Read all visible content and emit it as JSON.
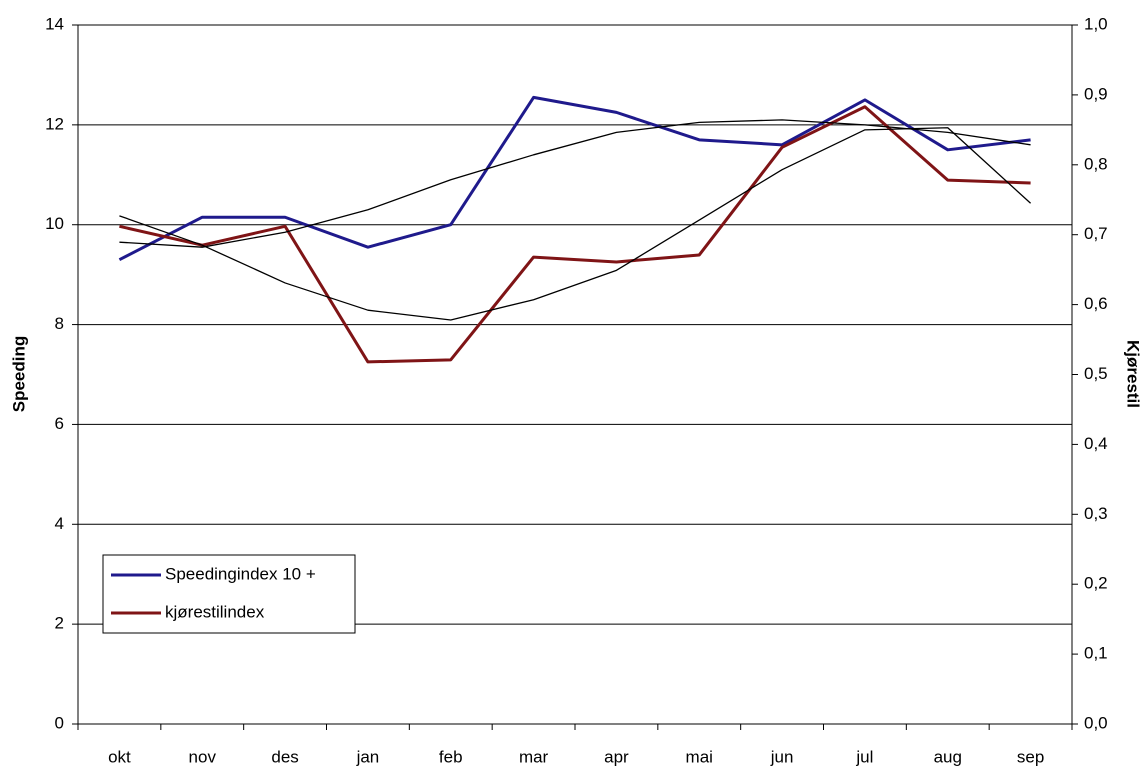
{
  "chart_data": {
    "type": "line",
    "categories": [
      "okt",
      "nov",
      "des",
      "jan",
      "feb",
      "mar",
      "apr",
      "mai",
      "jun",
      "jul",
      "aug",
      "sep"
    ],
    "y_label": "Speeding",
    "y2_label": "Kjørestil",
    "ylim": [
      0,
      14
    ],
    "yticks": [
      0,
      2,
      4,
      6,
      8,
      10,
      12,
      14
    ],
    "y2lim": [
      0,
      1
    ],
    "y2ticks": [
      {
        "value": 0,
        "label": "0,0"
      },
      {
        "value": 0.1,
        "label": "0,1"
      },
      {
        "value": 0.2,
        "label": "0,2"
      },
      {
        "value": 0.3,
        "label": "0,3"
      },
      {
        "value": 0.4,
        "label": "0,4"
      },
      {
        "value": 0.5,
        "label": "0,5"
      },
      {
        "value": 0.6,
        "label": "0,6"
      },
      {
        "value": 0.7,
        "label": "0,7"
      },
      {
        "value": 0.8,
        "label": "0,8"
      },
      {
        "value": 0.9,
        "label": "0,9"
      },
      {
        "value": 1,
        "label": "1,0"
      }
    ],
    "grid": true,
    "legend": "lower left",
    "series": [
      {
        "name": "Speedingindex 10 +",
        "color": "#1f1a8c",
        "values": [
          9.3,
          10.15,
          10.15,
          9.55,
          10.0,
          12.55,
          12.25,
          11.7,
          11.6,
          12.5,
          11.5,
          11.7
        ]
      },
      {
        "name": "kjørestilindex",
        "color": "#7f1416",
        "axis": "y2",
        "values": [
          0.712,
          0.685,
          0.712,
          0.518,
          0.521,
          0.668,
          0.661,
          0.671,
          0.825,
          0.883,
          0.778,
          0.774
        ]
      },
      {
        "color": "#000000",
        "values": [
          9.65,
          9.55,
          9.85,
          10.3,
          10.9,
          11.4,
          11.85,
          12.05,
          12.1,
          12.0,
          11.85,
          11.6
        ]
      },
      {
        "color": "#000000",
        "axis": "y2",
        "values": [
          0.727,
          0.685,
          0.631,
          0.592,
          0.578,
          0.607,
          0.649,
          0.721,
          0.793,
          0.85,
          0.853,
          0.745
        ]
      }
    ]
  }
}
